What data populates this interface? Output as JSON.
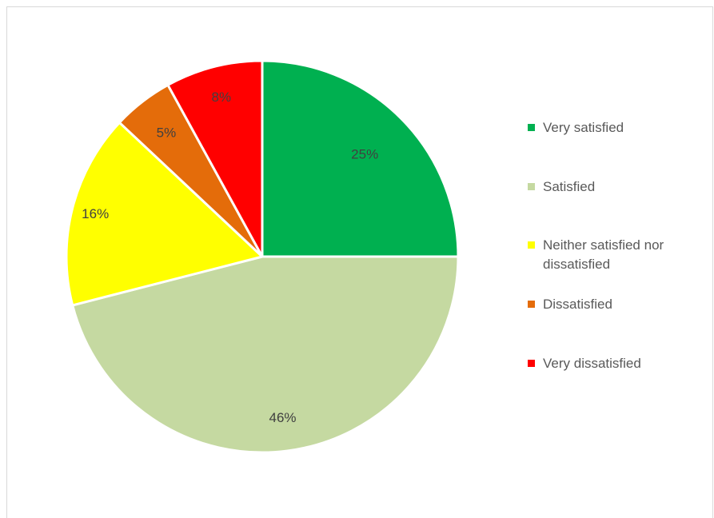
{
  "chart_data": {
    "type": "pie",
    "categories": [
      "Very satisfied",
      "Satisfied",
      "Neither satisfied nor dissatisfied",
      "Dissatisfied",
      "Very dissatisfied"
    ],
    "values": [
      25,
      46,
      16,
      5,
      8
    ],
    "data_labels": [
      "25%",
      "46%",
      "16%",
      "5%",
      "8%"
    ],
    "colors": [
      "#00b050",
      "#c5d9a1",
      "#ffff00",
      "#e46c0a",
      "#ff0000"
    ],
    "start_angle_deg": 0,
    "direction": "clockwise",
    "legend_position": "right",
    "title": ""
  }
}
